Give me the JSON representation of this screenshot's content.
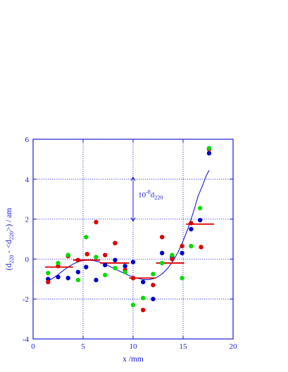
{
  "chart_data": {
    "type": "scatter",
    "title": "",
    "xlabel": "x /mm",
    "ylabel_parts": {
      "a": "(d",
      "sub1": "220",
      "b": " - <d",
      "sub2": "220",
      "c": ">) / am"
    },
    "xlim": [
      0,
      20
    ],
    "ylim": [
      -4,
      6
    ],
    "x_ticks": [
      0,
      5,
      10,
      15,
      20
    ],
    "y_ticks": [
      -4,
      -2,
      0,
      2,
      4,
      6
    ],
    "x_tick_labels": [
      "0",
      "5",
      "10",
      "15",
      "20"
    ],
    "y_tick_labels": [
      "-4",
      "-2",
      "0",
      "2",
      "4",
      "6"
    ],
    "grid": true,
    "annotation": {
      "text_main": "10",
      "sup": "-8",
      "mid": "d",
      "sub": "220",
      "x": 10,
      "y_from": 1.9,
      "y_to": 4.1,
      "text_x": 10.5,
      "text_y": 3.1
    },
    "series": [
      {
        "color": "#0000cc",
        "points": [
          [
            1.5,
            -1.0
          ],
          [
            2.5,
            -0.9
          ],
          [
            3.5,
            -0.95
          ],
          [
            4.5,
            -0.65
          ],
          [
            5.3,
            -0.4
          ],
          [
            6.3,
            -1.05
          ],
          [
            7.2,
            -0.3
          ],
          [
            8.2,
            -0.05
          ],
          [
            9.2,
            -0.35
          ],
          [
            10.0,
            -0.15
          ],
          [
            11.0,
            -1.15
          ],
          [
            12.0,
            -2.0
          ],
          [
            12.9,
            0.3
          ],
          [
            13.9,
            0.1
          ],
          [
            14.9,
            0.3
          ],
          [
            15.8,
            1.5
          ],
          [
            16.7,
            1.95
          ],
          [
            17.6,
            5.3
          ]
        ]
      },
      {
        "color": "#dd0000",
        "points": [
          [
            1.5,
            -1.15
          ],
          [
            2.5,
            -0.35
          ],
          [
            3.5,
            0.15
          ],
          [
            4.5,
            -0.05
          ],
          [
            5.4,
            0.25
          ],
          [
            6.3,
            1.85
          ],
          [
            7.2,
            0.2
          ],
          [
            8.2,
            0.8
          ],
          [
            9.2,
            -0.55
          ],
          [
            10.0,
            -0.95
          ],
          [
            11.0,
            -2.55
          ],
          [
            12.0,
            -1.3
          ],
          [
            12.9,
            1.1
          ],
          [
            13.9,
            0.0
          ],
          [
            14.9,
            0.65
          ],
          [
            15.8,
            1.8
          ],
          [
            16.8,
            0.6
          ],
          [
            17.6,
            5.5
          ]
        ]
      },
      {
        "color": "#00dd00",
        "points": [
          [
            1.5,
            -0.7
          ],
          [
            2.5,
            -0.2
          ],
          [
            3.5,
            0.2
          ],
          [
            4.5,
            -1.05
          ],
          [
            5.3,
            1.1
          ],
          [
            6.3,
            0.1
          ],
          [
            7.2,
            -0.8
          ],
          [
            8.2,
            -0.45
          ],
          [
            9.2,
            -0.65
          ],
          [
            10.0,
            -2.3
          ],
          [
            11.0,
            -1.95
          ],
          [
            12.0,
            -0.75
          ],
          [
            12.9,
            -0.2
          ],
          [
            13.9,
            0.2
          ],
          [
            14.9,
            -0.95
          ],
          [
            15.8,
            0.65
          ],
          [
            16.7,
            2.55
          ],
          [
            17.6,
            5.55
          ]
        ]
      }
    ],
    "step_segments": {
      "color": "#dd0000",
      "segments": [
        {
          "x0": 1.2,
          "x1": 4.0,
          "y": -0.4
        },
        {
          "x0": 4.0,
          "x1": 6.7,
          "y": -0.05
        },
        {
          "x0": 6.7,
          "x1": 9.6,
          "y": -0.2
        },
        {
          "x0": 9.6,
          "x1": 12.3,
          "y": -0.95
        },
        {
          "x0": 12.3,
          "x1": 15.1,
          "y": -0.2
        },
        {
          "x0": 15.3,
          "x1": 18.1,
          "y": 1.75
        }
      ]
    },
    "fit_curve": {
      "color": "#1a1ad6",
      "points": [
        [
          1.5,
          -1.1
        ],
        [
          2.0,
          -0.95
        ],
        [
          2.5,
          -0.78
        ],
        [
          3.0,
          -0.58
        ],
        [
          3.5,
          -0.4
        ],
        [
          4.0,
          -0.25
        ],
        [
          4.5,
          -0.14
        ],
        [
          5.0,
          -0.07
        ],
        [
          5.5,
          -0.05
        ],
        [
          6.0,
          -0.07
        ],
        [
          6.5,
          -0.13
        ],
        [
          7.0,
          -0.22
        ],
        [
          7.5,
          -0.33
        ],
        [
          8.0,
          -0.45
        ],
        [
          8.5,
          -0.57
        ],
        [
          9.0,
          -0.69
        ],
        [
          9.5,
          -0.8
        ],
        [
          10.0,
          -0.9
        ],
        [
          10.5,
          -0.97
        ],
        [
          11.0,
          -1.02
        ],
        [
          11.5,
          -1.03
        ],
        [
          12.0,
          -0.99
        ],
        [
          12.5,
          -0.88
        ],
        [
          13.0,
          -0.7
        ],
        [
          13.5,
          -0.44
        ],
        [
          14.0,
          -0.1
        ],
        [
          14.5,
          0.35
        ],
        [
          15.0,
          0.9
        ],
        [
          15.5,
          1.55
        ],
        [
          16.0,
          2.3
        ],
        [
          16.5,
          3.15
        ],
        [
          17.0,
          3.75
        ],
        [
          17.3,
          4.15
        ],
        [
          17.6,
          4.45
        ]
      ]
    }
  }
}
